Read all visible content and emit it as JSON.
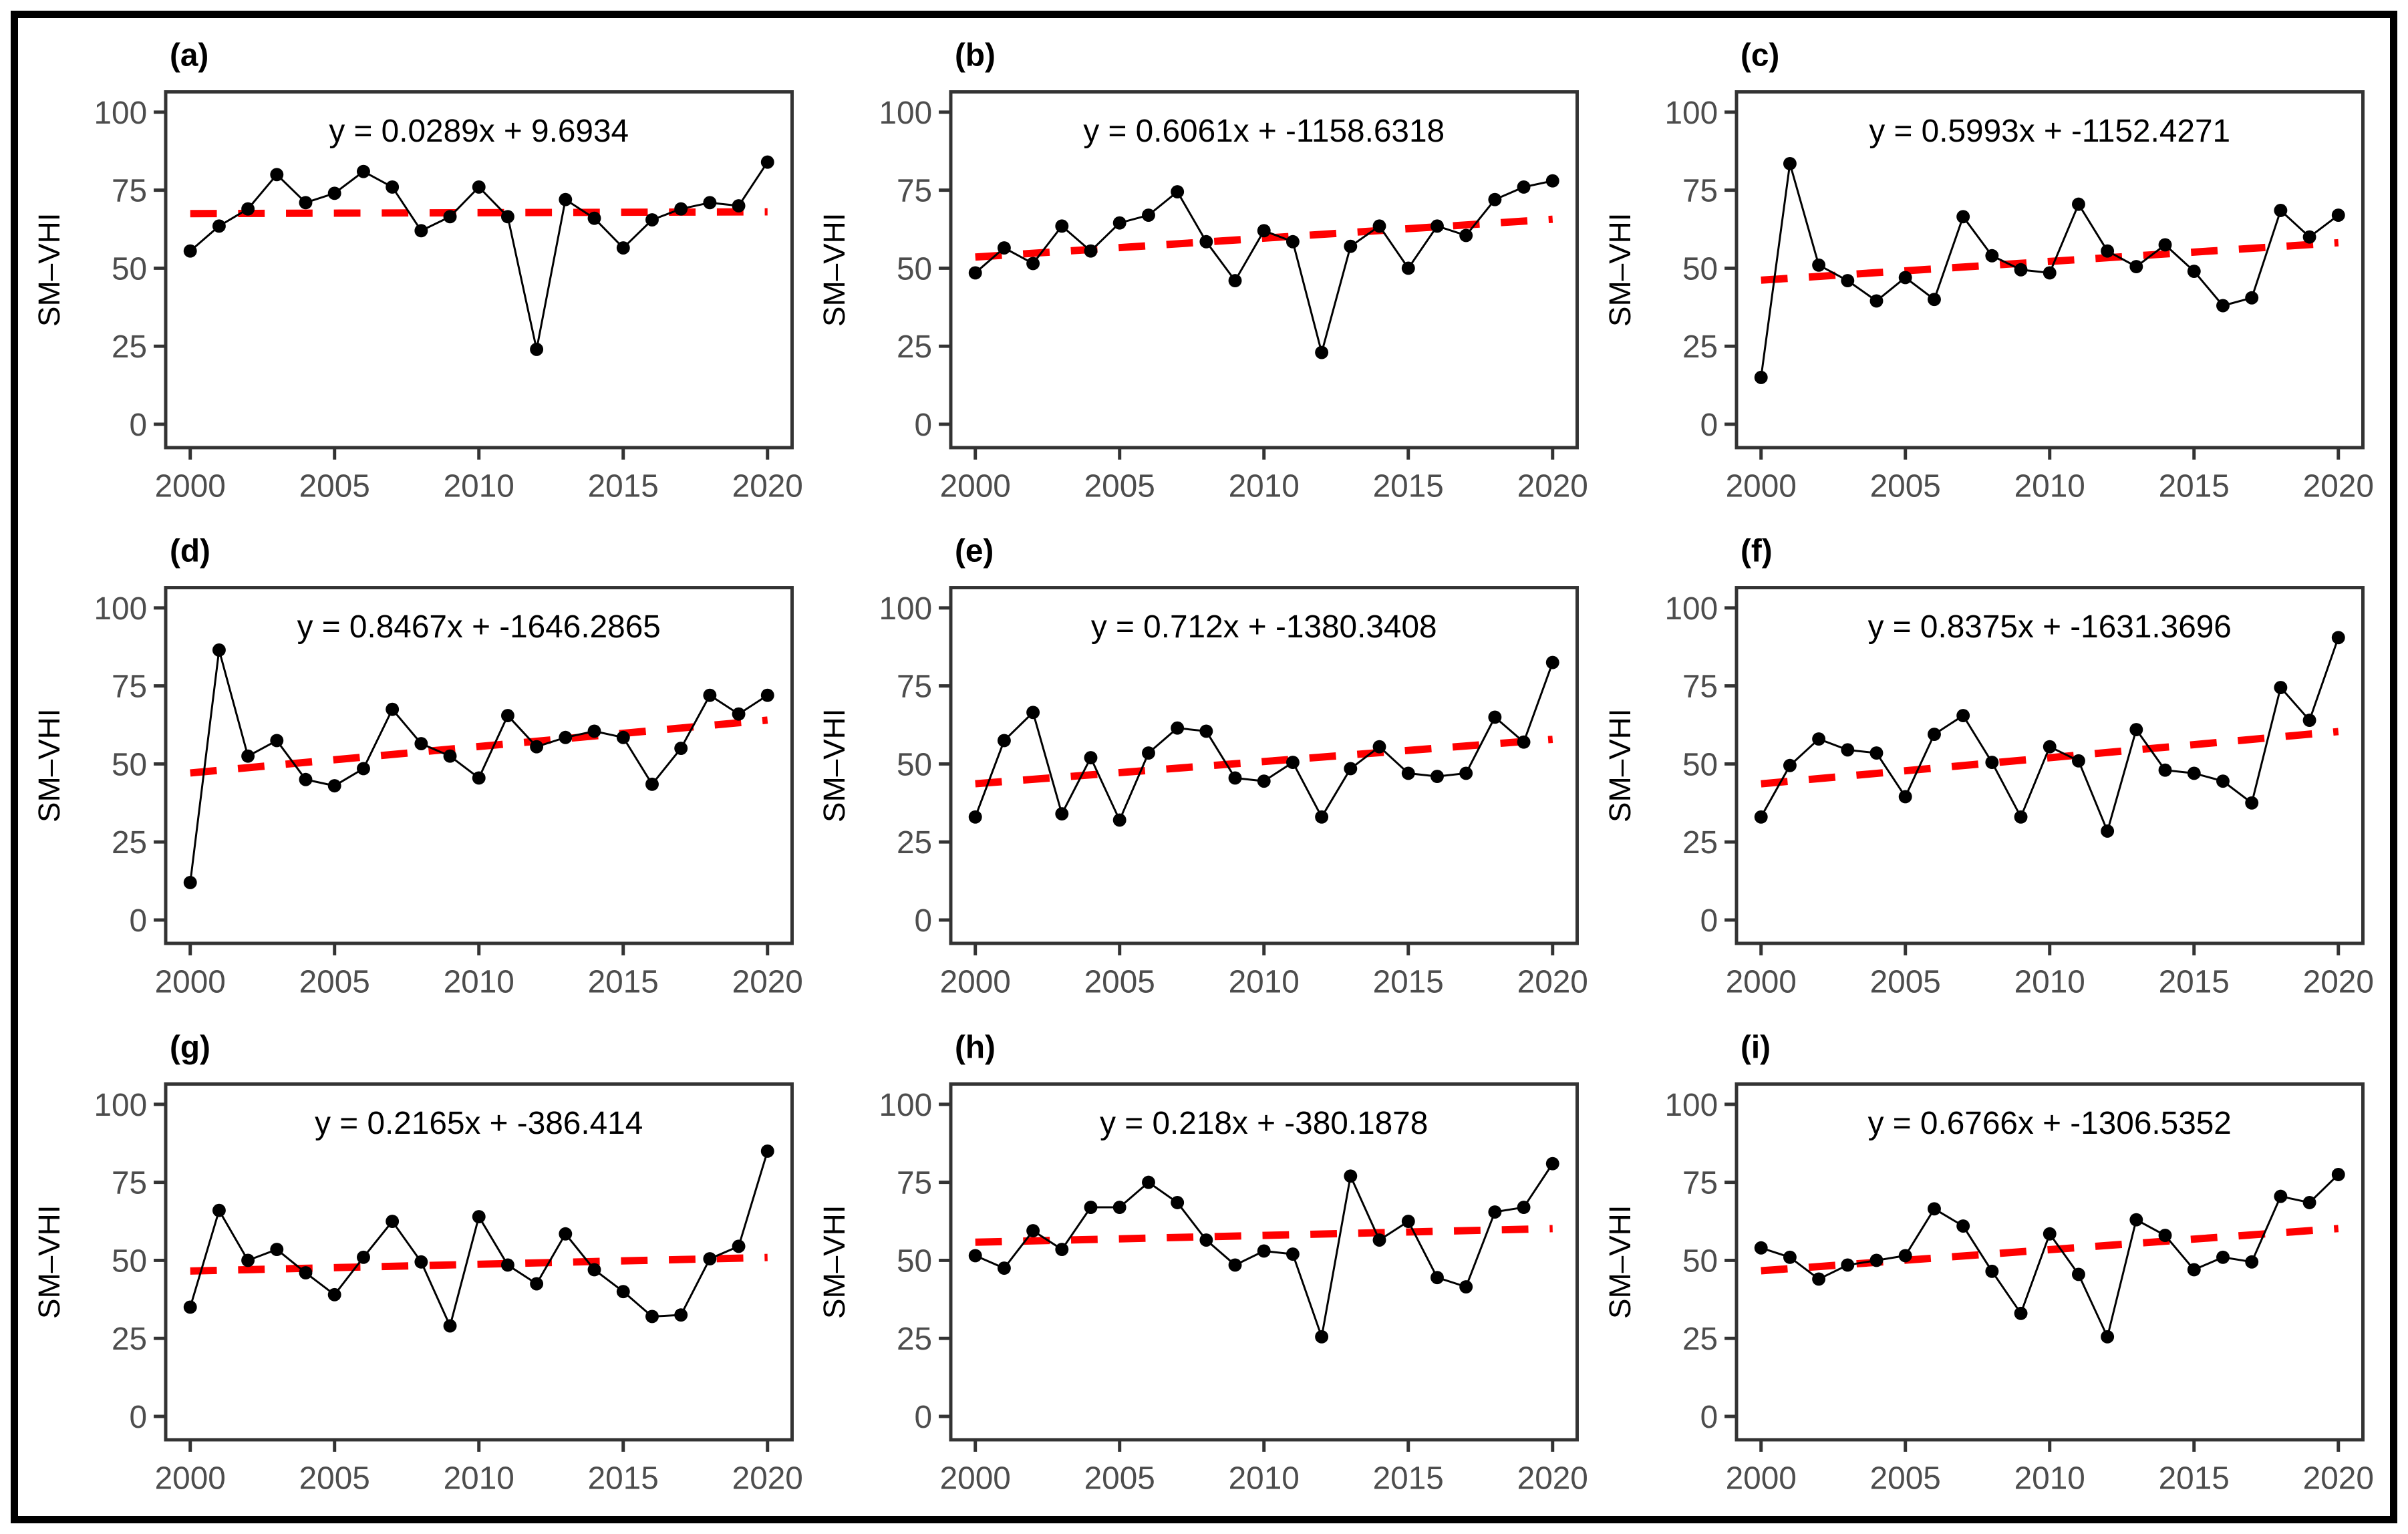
{
  "figure": {
    "ylabel": "SM–VHI",
    "years": [
      2000,
      2001,
      2002,
      2003,
      2004,
      2005,
      2006,
      2007,
      2008,
      2009,
      2010,
      2011,
      2012,
      2013,
      2014,
      2015,
      2016,
      2017,
      2018,
      2019,
      2020
    ],
    "x_ticks": [
      2000,
      2005,
      2010,
      2015,
      2020
    ],
    "y_ticks": [
      0,
      25,
      50,
      75,
      100
    ],
    "xlim": [
      1999.15,
      2020.85
    ],
    "ylim": [
      -7.5,
      106.5
    ],
    "grid": false,
    "legend": "none",
    "colors": {
      "line": "#000000",
      "point": "#000000",
      "trend": "#ff0000",
      "axis": "#333333",
      "tick_text": "#4d4d4d",
      "label_text": "#000000",
      "border": "#000000",
      "background": "#ffffff"
    }
  },
  "chart_data": [
    {
      "type": "line",
      "panel": "(a)",
      "title": "y = 0.0289x + 9.6934",
      "trend": {
        "slope": 0.0289,
        "intercept": 9.6934
      },
      "x": [
        2000,
        2001,
        2002,
        2003,
        2004,
        2005,
        2006,
        2007,
        2008,
        2009,
        2010,
        2011,
        2012,
        2013,
        2014,
        2015,
        2016,
        2017,
        2018,
        2019,
        2020
      ],
      "y": [
        55.5,
        63.5,
        69,
        80,
        71,
        74,
        81,
        76,
        62,
        66.5,
        76,
        66.5,
        24,
        72,
        66,
        56.5,
        65.5,
        69,
        71,
        70,
        84
      ],
      "xlabel": "",
      "ylabel": "SM–VHI"
    },
    {
      "type": "line",
      "panel": "(b)",
      "title": "y = 0.6061x + -1158.6318",
      "trend": {
        "slope": 0.6061,
        "intercept": -1158.6318
      },
      "x": [
        2000,
        2001,
        2002,
        2003,
        2004,
        2005,
        2006,
        2007,
        2008,
        2009,
        2010,
        2011,
        2012,
        2013,
        2014,
        2015,
        2016,
        2017,
        2018,
        2019,
        2020
      ],
      "y": [
        48.5,
        56.5,
        51.5,
        63.5,
        55.5,
        64.5,
        67,
        74.5,
        58.5,
        46,
        62,
        58.5,
        23,
        57,
        63.5,
        50,
        63.5,
        60.5,
        72,
        76,
        78
      ],
      "xlabel": "",
      "ylabel": "SM–VHI"
    },
    {
      "type": "line",
      "panel": "(c)",
      "title": "y = 0.5993x + -1152.4271",
      "trend": {
        "slope": 0.5993,
        "intercept": -1152.4271
      },
      "x": [
        2000,
        2001,
        2002,
        2003,
        2004,
        2005,
        2006,
        2007,
        2008,
        2009,
        2010,
        2011,
        2012,
        2013,
        2014,
        2015,
        2016,
        2017,
        2018,
        2019,
        2020
      ],
      "y": [
        15,
        83.5,
        51,
        46,
        39.5,
        47,
        40,
        66.5,
        54,
        49.5,
        48.5,
        70.5,
        55.5,
        50.5,
        57.5,
        49,
        38,
        40.5,
        68.5,
        60,
        67
      ],
      "xlabel": "",
      "ylabel": "SM–VHI"
    },
    {
      "type": "line",
      "panel": "(d)",
      "title": "y = 0.8467x + -1646.2865",
      "trend": {
        "slope": 0.8467,
        "intercept": -1646.2865
      },
      "x": [
        2000,
        2001,
        2002,
        2003,
        2004,
        2005,
        2006,
        2007,
        2008,
        2009,
        2010,
        2011,
        2012,
        2013,
        2014,
        2015,
        2016,
        2017,
        2018,
        2019,
        2020
      ],
      "y": [
        12,
        86.5,
        52.5,
        57.5,
        45,
        43,
        48.5,
        67.5,
        56.5,
        52.5,
        45.5,
        65.5,
        55.5,
        58.5,
        60.5,
        58.5,
        43.5,
        55,
        72,
        66,
        72
      ],
      "xlabel": "",
      "ylabel": "SM–VHI"
    },
    {
      "type": "line",
      "panel": "(e)",
      "title": "y = 0.712x + -1380.3408",
      "trend": {
        "slope": 0.712,
        "intercept": -1380.3408
      },
      "x": [
        2000,
        2001,
        2002,
        2003,
        2004,
        2005,
        2006,
        2007,
        2008,
        2009,
        2010,
        2011,
        2012,
        2013,
        2014,
        2015,
        2016,
        2017,
        2018,
        2019,
        2020
      ],
      "y": [
        33,
        57.5,
        66.5,
        34,
        52,
        32,
        53.5,
        61.5,
        60.5,
        45.5,
        44.5,
        50.5,
        33,
        48.5,
        55.5,
        47,
        46,
        47,
        65,
        57,
        82.5
      ],
      "xlabel": "",
      "ylabel": "SM–VHI"
    },
    {
      "type": "line",
      "panel": "(f)",
      "title": "y = 0.8375x + -1631.3696",
      "trend": {
        "slope": 0.8375,
        "intercept": -1631.3696
      },
      "x": [
        2000,
        2001,
        2002,
        2003,
        2004,
        2005,
        2006,
        2007,
        2008,
        2009,
        2010,
        2011,
        2012,
        2013,
        2014,
        2015,
        2016,
        2017,
        2018,
        2019,
        2020
      ],
      "y": [
        33,
        49.5,
        58,
        54.5,
        53.5,
        39.5,
        59.5,
        65.5,
        50.5,
        33,
        55.5,
        51,
        28.5,
        61,
        48,
        47,
        44.5,
        37.5,
        74.5,
        64,
        90.5
      ],
      "xlabel": "",
      "ylabel": "SM–VHI"
    },
    {
      "type": "line",
      "panel": "(g)",
      "title": "y = 0.2165x + -386.414",
      "trend": {
        "slope": 0.2165,
        "intercept": -386.414
      },
      "x": [
        2000,
        2001,
        2002,
        2003,
        2004,
        2005,
        2006,
        2007,
        2008,
        2009,
        2010,
        2011,
        2012,
        2013,
        2014,
        2015,
        2016,
        2017,
        2018,
        2019,
        2020
      ],
      "y": [
        35,
        66,
        50,
        53.5,
        46,
        39,
        51,
        62.5,
        49.5,
        29,
        64,
        48.5,
        42.5,
        58.5,
        47,
        40,
        32,
        32.5,
        50.5,
        54.5,
        85
      ],
      "xlabel": "",
      "ylabel": "SM–VHI"
    },
    {
      "type": "line",
      "panel": "(h)",
      "title": "y = 0.218x + -380.1878",
      "trend": {
        "slope": 0.218,
        "intercept": -380.1878
      },
      "x": [
        2000,
        2001,
        2002,
        2003,
        2004,
        2005,
        2006,
        2007,
        2008,
        2009,
        2010,
        2011,
        2012,
        2013,
        2014,
        2015,
        2016,
        2017,
        2018,
        2019,
        2020
      ],
      "y": [
        51.5,
        47.5,
        59.5,
        53.5,
        67,
        67,
        75,
        68.5,
        56.5,
        48.5,
        53,
        52,
        25.5,
        77,
        56.5,
        62.5,
        44.5,
        41.5,
        65.5,
        67,
        81
      ],
      "xlabel": "",
      "ylabel": "SM–VHI"
    },
    {
      "type": "line",
      "panel": "(i)",
      "title": "y = 0.6766x + -1306.5352",
      "trend": {
        "slope": 0.6766,
        "intercept": -1306.5352
      },
      "x": [
        2000,
        2001,
        2002,
        2003,
        2004,
        2005,
        2006,
        2007,
        2008,
        2009,
        2010,
        2011,
        2012,
        2013,
        2014,
        2015,
        2016,
        2017,
        2018,
        2019,
        2020
      ],
      "y": [
        54,
        51,
        44,
        48.5,
        50,
        51.5,
        66.5,
        61,
        46.5,
        33,
        58.5,
        45.5,
        25.5,
        63,
        58,
        47,
        51,
        49.5,
        70.5,
        68.5,
        77.5
      ],
      "xlabel": "",
      "ylabel": "SM–VHI"
    }
  ]
}
